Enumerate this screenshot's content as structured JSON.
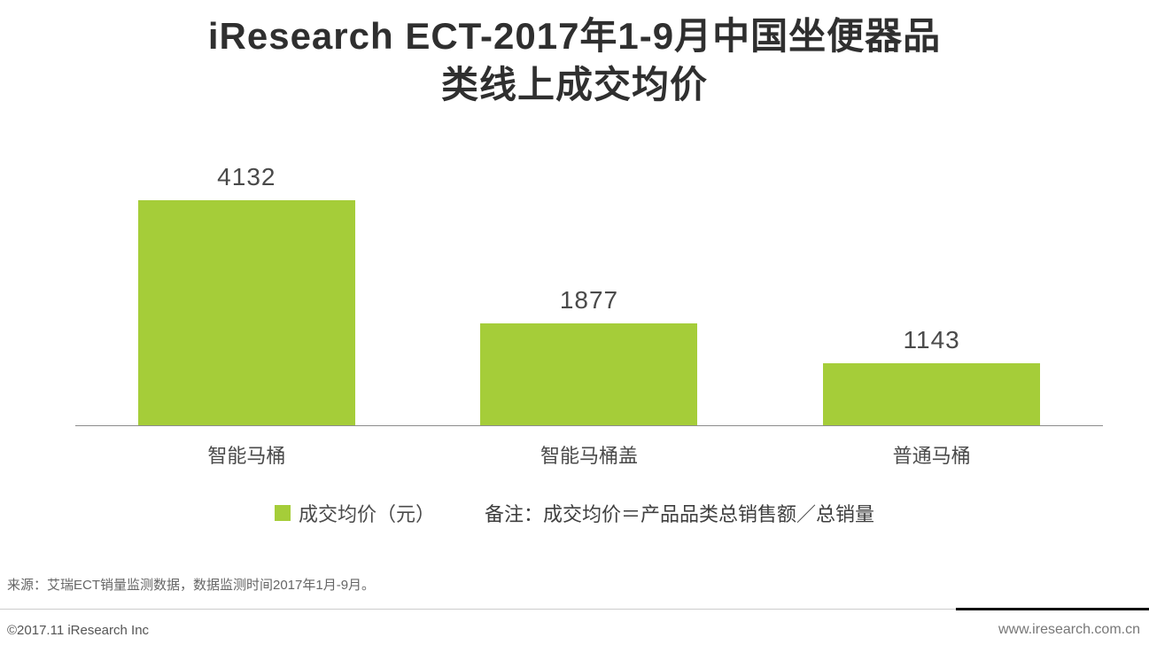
{
  "title": {
    "line1": "iResearch ECT-2017年1-9月中国坐便器品",
    "line2": "类线上成交均价"
  },
  "chart_data": {
    "type": "bar",
    "title": "iResearch ECT-2017年1-9月中国坐便器品类线上成交均价",
    "categories": [
      "智能马桶",
      "智能马桶盖",
      "普通马桶"
    ],
    "values": [
      4132,
      1877,
      1143
    ],
    "series_name": "成交均价（元）",
    "xlabel": "",
    "ylabel": "",
    "ylim": [
      0,
      4200
    ],
    "grid": false,
    "legend_position": "bottom",
    "bar_color": "#a5cd39",
    "value_labels_shown": true
  },
  "legend": {
    "label": "成交均价（元）",
    "note": "备注：成交均价＝产品品类总销售额／总销量"
  },
  "source": "来源：艾瑞ECT销量监测数据，数据监测时间2017年1月-9月。",
  "footer": {
    "copyright": "©2017.11 iResearch Inc",
    "website": "www.iresearch.com.cn"
  },
  "colors": {
    "bar": "#a5cd39",
    "divider_gray": "#cccccc",
    "divider_black": "#111111"
  }
}
